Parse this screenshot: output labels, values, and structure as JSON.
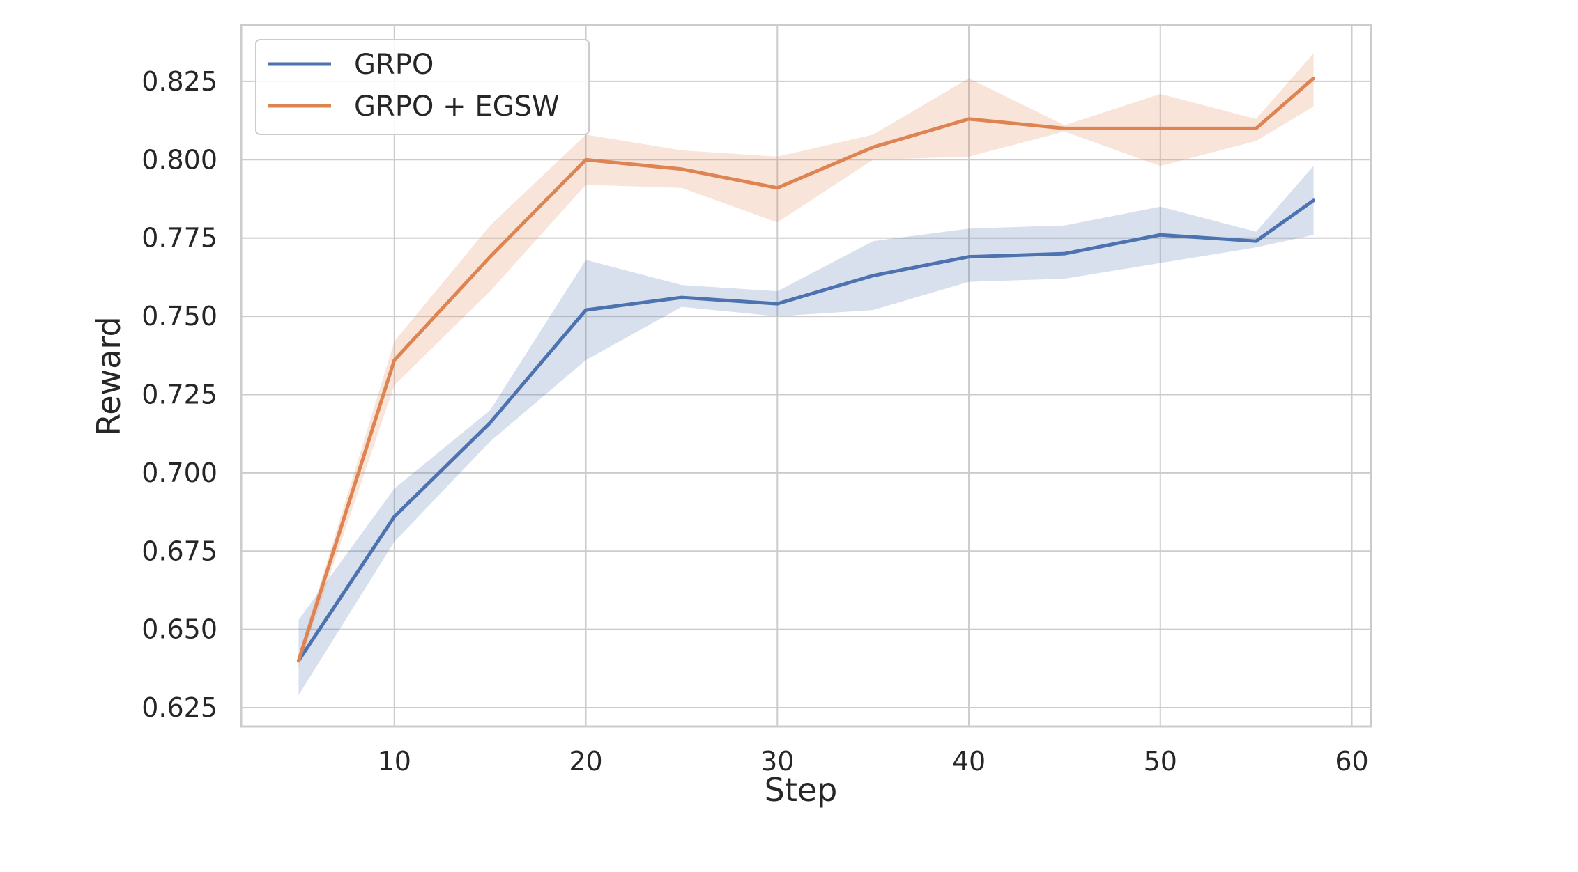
{
  "chart_data": {
    "type": "line",
    "xlabel": "Step",
    "ylabel": "Reward",
    "xlim": [
      2,
      61
    ],
    "ylim": [
      0.619,
      0.843
    ],
    "xticks": [
      10,
      20,
      30,
      40,
      50,
      60
    ],
    "yticks": [
      0.625,
      0.65,
      0.675,
      0.7,
      0.725,
      0.75,
      0.775,
      0.8,
      0.825
    ],
    "x": [
      5,
      10,
      15,
      20,
      25,
      30,
      35,
      40,
      45,
      50,
      55,
      58
    ],
    "grid": true,
    "legend_position": "top-left",
    "series": [
      {
        "name": "GRPO",
        "color": "#4c72b0",
        "values": [
          0.64,
          0.686,
          0.716,
          0.752,
          0.756,
          0.754,
          0.763,
          0.769,
          0.77,
          0.776,
          0.774,
          0.787
        ],
        "lower": [
          0.629,
          0.678,
          0.71,
          0.736,
          0.753,
          0.75,
          0.752,
          0.761,
          0.762,
          0.767,
          0.772,
          0.776
        ],
        "upper": [
          0.653,
          0.695,
          0.72,
          0.768,
          0.76,
          0.758,
          0.774,
          0.778,
          0.779,
          0.785,
          0.777,
          0.798
        ]
      },
      {
        "name": "GRPO + EGSW",
        "color": "#dd8452",
        "values": [
          0.64,
          0.736,
          0.769,
          0.8,
          0.797,
          0.791,
          0.804,
          0.813,
          0.81,
          0.81,
          0.81,
          0.826
        ],
        "lower": [
          0.638,
          0.728,
          0.758,
          0.792,
          0.791,
          0.78,
          0.8,
          0.801,
          0.809,
          0.798,
          0.806,
          0.817
        ],
        "upper": [
          0.642,
          0.742,
          0.779,
          0.808,
          0.803,
          0.801,
          0.808,
          0.826,
          0.811,
          0.821,
          0.813,
          0.834
        ]
      }
    ]
  }
}
